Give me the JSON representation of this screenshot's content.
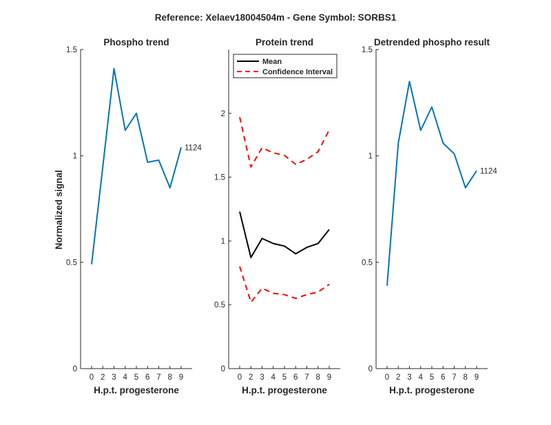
{
  "figure": {
    "suptitle": "Reference:  Xelaev18004504m - Gene Symbol:  SORBS1"
  },
  "colors": {
    "blue": "#0072BD",
    "black": "#000000",
    "red": "#FF0000",
    "axis": "#262626"
  },
  "chart_data": [
    {
      "id": "phospho",
      "type": "line",
      "title": "Phospho trend",
      "xlabel": "H.p.t. progesterone",
      "ylabel": "Normalized signal",
      "categories": [
        "0",
        "2",
        "3",
        "4",
        "5",
        "6",
        "7",
        "8",
        "9"
      ],
      "ylim": [
        0,
        1.5
      ],
      "yticks": [
        0,
        0.5,
        1,
        1.5
      ],
      "ytick_labels": [
        "0",
        "0.5",
        "1",
        "1.5"
      ],
      "series": [
        {
          "name": "1124",
          "style": "solid",
          "color": "#0072BD",
          "values": [
            0.49,
            0.95,
            1.41,
            1.12,
            1.2,
            0.97,
            0.98,
            0.85,
            1.04
          ]
        }
      ],
      "annotation": "1124"
    },
    {
      "id": "protein",
      "type": "line",
      "title": "Protein trend",
      "xlabel": "H.p.t. progesterone",
      "ylabel": "",
      "categories": [
        "0",
        "2",
        "3",
        "4",
        "5",
        "6",
        "7",
        "8",
        "9"
      ],
      "ylim": [
        0,
        2.5
      ],
      "yticks": [
        0,
        0.5,
        1,
        1.5,
        2
      ],
      "ytick_labels": [
        "0",
        "0.5",
        "1",
        "1.5",
        "2"
      ],
      "legend": {
        "position": "top-left",
        "entries": [
          "Mean",
          "Confidence Interval"
        ]
      },
      "series": [
        {
          "name": "Mean",
          "style": "solid",
          "color": "#000000",
          "values": [
            1.23,
            0.87,
            1.02,
            0.98,
            0.96,
            0.9,
            0.95,
            0.98,
            1.09
          ]
        },
        {
          "name": "Confidence Interval (upper)",
          "style": "dashed",
          "color": "#FF0000",
          "values": [
            1.97,
            1.58,
            1.73,
            1.69,
            1.67,
            1.6,
            1.64,
            1.7,
            1.87
          ]
        },
        {
          "name": "Confidence Interval (lower)",
          "style": "dashed",
          "color": "#FF0000",
          "values": [
            0.8,
            0.52,
            0.63,
            0.59,
            0.58,
            0.55,
            0.58,
            0.6,
            0.66
          ]
        }
      ]
    },
    {
      "id": "detrended",
      "type": "line",
      "title": "Detrended phospho result",
      "xlabel": "H.p.t. progesterone",
      "ylabel": "",
      "categories": [
        "0",
        "2",
        "3",
        "4",
        "5",
        "6",
        "7",
        "8",
        "9"
      ],
      "ylim": [
        0,
        1.5
      ],
      "yticks": [
        0,
        0.5,
        1,
        1.5
      ],
      "ytick_labels": [
        "0",
        "0.5",
        "1",
        "1.5"
      ],
      "series": [
        {
          "name": "1124",
          "style": "solid",
          "color": "#0072BD",
          "values": [
            0.39,
            1.06,
            1.35,
            1.12,
            1.23,
            1.06,
            1.01,
            0.85,
            0.93
          ]
        }
      ],
      "annotation": "1124"
    }
  ]
}
